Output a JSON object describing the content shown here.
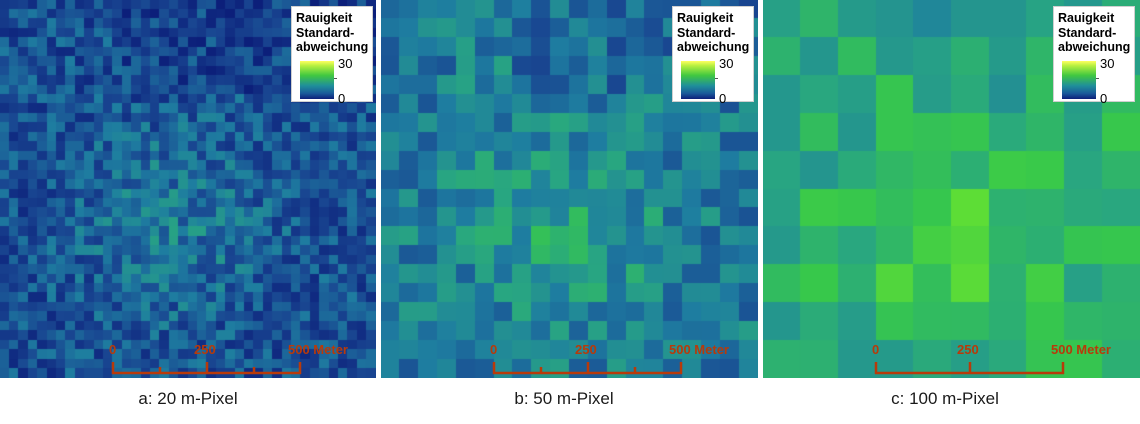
{
  "legend": {
    "title_line1": "Rauigkeit",
    "title_line2": "Standard-",
    "title_line3": "abweichung",
    "max": "30",
    "min": "0"
  },
  "scalebar": {
    "label_0": "0",
    "label_250": "250",
    "label_500": "500 Meter",
    "color": "#b83a0a"
  },
  "panels": [
    {
      "caption": "a: 20 m-Pixel",
      "pixel_size_m": 20
    },
    {
      "caption": "b: 50 m-Pixel",
      "pixel_size_m": 50
    },
    {
      "caption": "c: 100 m-Pixel",
      "pixel_size_m": 100
    }
  ],
  "colormap": {
    "low": "#0c1f7a",
    "mid": "#1f8f9a",
    "high_green": "#40c840",
    "top": "#ffff60"
  }
}
